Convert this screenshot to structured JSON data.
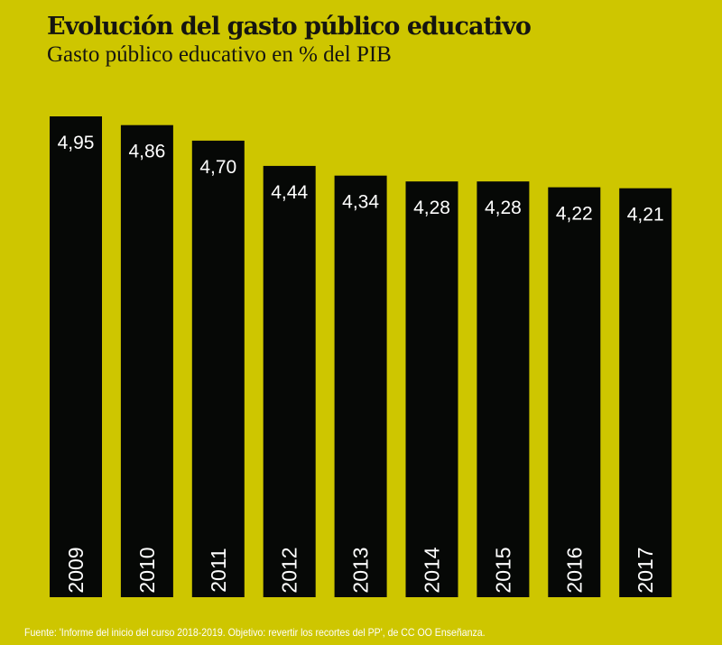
{
  "chart_data": {
    "type": "bar",
    "title": "Evolución del gasto público educativo",
    "subtitle": "Gasto público educativo en % del PIB",
    "categories": [
      "2009",
      "2010",
      "2011",
      "2012",
      "2013",
      "2014",
      "2015",
      "2016",
      "2017"
    ],
    "values": [
      4.95,
      4.86,
      4.7,
      4.44,
      4.34,
      4.28,
      4.28,
      4.22,
      4.21
    ],
    "labels": [
      "4,95",
      "4,86",
      "4,70",
      "4,44",
      "4,34",
      "4,28",
      "4,28",
      "4,22",
      "4,21"
    ],
    "ylim": [
      0,
      4.95
    ],
    "grid": false,
    "colors": {
      "background": "#cec600",
      "bar": "#060806",
      "text": "#ffffff"
    }
  },
  "footer": "Fuente: 'Informe del inicio del curso 2018-2019. Objetivo: revertir los recortes del PP', de CC OO Enseñanza."
}
